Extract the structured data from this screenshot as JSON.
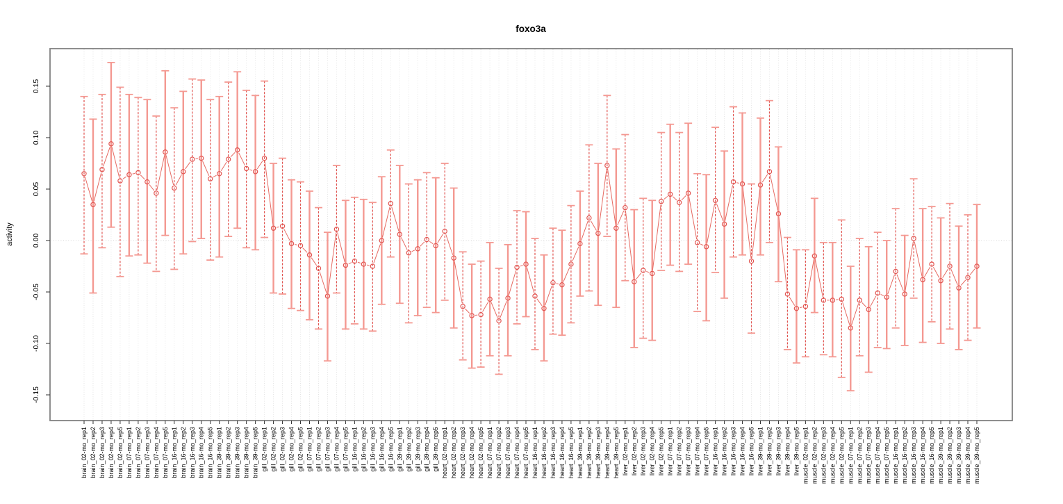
{
  "title": "foxo3a",
  "y_axis": {
    "label": "activity",
    "tick_labels": [
      "0.15",
      "0.10",
      "0.05",
      "0.00",
      "-0.05",
      "-0.10",
      "-0.15"
    ],
    "tick_values": [
      0.15,
      0.1,
      0.05,
      0.0,
      -0.05,
      -0.1,
      -0.15
    ]
  },
  "chart_data": {
    "type": "scatter",
    "title": "foxo3a",
    "xlabel": "",
    "ylabel": "activity",
    "ylim": [
      -0.157,
      0.18
    ],
    "grid": "vertical-dotted-per-category-plus-zero-line",
    "legend_position": "none",
    "marker": "open-circle",
    "error_bars": true,
    "categories": [
      "brain_02-mo_rep1",
      "brain_02-mo_rep2",
      "brain_02-mo_rep3",
      "brain_02-mo_rep4",
      "brain_02-mo_rep5",
      "brain_07-mo_rep1",
      "brain_07-mo_rep2",
      "brain_07-mo_rep3",
      "brain_07-mo_rep4",
      "brain_07-mo_rep5",
      "brain_16-mo_rep1",
      "brain_16-mo_rep2",
      "brain_16-mo_rep3",
      "brain_16-mo_rep4",
      "brain_16-mo_rep5",
      "brain_39-mo_rep1",
      "brain_39-mo_rep2",
      "brain_39-mo_rep3",
      "brain_39-mo_rep4",
      "brain_39-mo_rep5",
      "gill_02-mo_rep1",
      "gill_02-mo_rep2",
      "gill_02-mo_rep3",
      "gill_02-mo_rep4",
      "gill_02-mo_rep5",
      "gill_07-mo_rep1",
      "gill_07-mo_rep2",
      "gill_07-mo_rep3",
      "gill_07-mo_rep4",
      "gill_07-mo_rep5",
      "gill_16-mo_rep1",
      "gill_16-mo_rep2",
      "gill_16-mo_rep3",
      "gill_16-mo_rep4",
      "gill_16-mo_rep5",
      "gill_39-mo_rep1",
      "gill_39-mo_rep2",
      "gill_39-mo_rep3",
      "gill_39-mo_rep4",
      "gill_39-mo_rep5",
      "heart_02-mo_rep1",
      "heart_02-mo_rep2",
      "heart_02-mo_rep3",
      "heart_02-mo_rep4",
      "heart_02-mo_rep5",
      "heart_07-mo_rep1",
      "heart_07-mo_rep2",
      "heart_07-mo_rep3",
      "heart_07-mo_rep4",
      "heart_07-mo_rep5",
      "heart_16-mo_rep1",
      "heart_16-mo_rep2",
      "heart_16-mo_rep3",
      "heart_16-mo_rep4",
      "heart_16-mo_rep5",
      "heart_39-mo_rep1",
      "heart_39-mo_rep2",
      "heart_39-mo_rep3",
      "heart_39-mo_rep4",
      "heart_39-mo_rep5",
      "liver_02-mo_rep1",
      "liver_02-mo_rep2",
      "liver_02-mo_rep3",
      "liver_02-mo_rep4",
      "liver_02-mo_rep5",
      "liver_07-mo_rep1",
      "liver_07-mo_rep2",
      "liver_07-mo_rep3",
      "liver_07-mo_rep4",
      "liver_07-mo_rep5",
      "liver_16-mo_rep1",
      "liver_16-mo_rep2",
      "liver_16-mo_rep3",
      "liver_16-mo_rep4",
      "liver_16-mo_rep5",
      "liver_39-mo_rep1",
      "liver_39-mo_rep2",
      "liver_39-mo_rep3",
      "liver_39-mo_rep4",
      "liver_39-mo_rep5",
      "muscle_02-mo_rep1",
      "muscle_02-mo_rep2",
      "muscle_02-mo_rep3",
      "muscle_02-mo_rep4",
      "muscle_02-mo_rep5",
      "muscle_07-mo_rep1",
      "muscle_07-mo_rep2",
      "muscle_07-mo_rep3",
      "muscle_07-mo_rep4",
      "muscle_07-mo_rep5",
      "muscle_16-mo_rep1",
      "muscle_16-mo_rep2",
      "muscle_16-mo_rep3",
      "muscle_16-mo_rep4",
      "muscle_16-mo_rep5",
      "muscle_39-mo_rep1",
      "muscle_39-mo_rep2",
      "muscle_39-mo_rep3",
      "muscle_39-mo_rep4",
      "muscle_39-mo_rep5"
    ],
    "series": [
      {
        "name": "activity",
        "values": [
          0.065,
          0.035,
          0.069,
          0.094,
          0.058,
          0.064,
          0.066,
          0.057,
          0.046,
          0.086,
          0.051,
          0.067,
          0.079,
          0.08,
          0.06,
          0.065,
          0.079,
          0.088,
          0.07,
          0.067,
          0.08,
          0.012,
          0.014,
          -0.003,
          -0.005,
          -0.014,
          -0.027,
          -0.054,
          0.011,
          -0.024,
          -0.02,
          -0.023,
          -0.025,
          0.0,
          0.036,
          0.006,
          -0.012,
          -0.008,
          0.001,
          -0.005,
          0.009,
          -0.017,
          -0.064,
          -0.073,
          -0.072,
          -0.057,
          -0.078,
          -0.056,
          -0.026,
          -0.023,
          -0.054,
          -0.066,
          -0.041,
          -0.043,
          -0.023,
          -0.003,
          0.022,
          0.007,
          0.073,
          0.012,
          0.032,
          -0.04,
          -0.029,
          -0.032,
          0.038,
          0.045,
          0.037,
          0.046,
          -0.002,
          -0.006,
          0.039,
          0.016,
          0.057,
          0.055,
          -0.02,
          0.054,
          0.067,
          0.026,
          -0.052,
          -0.066,
          -0.064,
          -0.015,
          -0.058,
          -0.058,
          -0.057,
          -0.085,
          -0.058,
          -0.067,
          -0.051,
          -0.055,
          -0.03,
          -0.052,
          0.002,
          -0.038,
          -0.023,
          -0.039,
          -0.025,
          -0.046,
          -0.036,
          -0.025
        ],
        "error_high": [
          0.14,
          0.118,
          0.142,
          0.173,
          0.149,
          0.142,
          0.139,
          0.137,
          0.121,
          0.165,
          0.129,
          0.145,
          0.157,
          0.156,
          0.137,
          0.14,
          0.154,
          0.164,
          0.146,
          0.141,
          0.155,
          0.075,
          0.08,
          0.059,
          0.057,
          0.048,
          0.032,
          0.008,
          0.073,
          0.039,
          0.042,
          0.04,
          0.037,
          0.062,
          0.088,
          0.073,
          0.055,
          0.059,
          0.066,
          0.061,
          0.075,
          0.051,
          -0.011,
          -0.023,
          -0.02,
          -0.002,
          -0.027,
          -0.004,
          0.029,
          0.028,
          0.002,
          -0.014,
          0.012,
          0.01,
          0.034,
          0.048,
          0.093,
          0.075,
          0.141,
          0.089,
          0.103,
          0.03,
          0.041,
          0.039,
          0.105,
          0.113,
          0.105,
          0.114,
          0.065,
          0.064,
          0.11,
          0.087,
          0.13,
          0.124,
          0.055,
          0.119,
          0.136,
          0.091,
          0.003,
          -0.009,
          -0.009,
          0.041,
          -0.002,
          -0.002,
          0.02,
          -0.025,
          0.002,
          -0.006,
          0.008,
          0.0,
          0.031,
          0.005,
          0.06,
          0.031,
          0.033,
          0.022,
          0.036,
          0.014,
          0.025,
          0.035
        ],
        "error_low": [
          -0.013,
          -0.051,
          -0.007,
          0.013,
          -0.035,
          -0.015,
          -0.014,
          -0.022,
          -0.03,
          0.005,
          -0.028,
          -0.013,
          -0.001,
          0.002,
          -0.019,
          -0.016,
          0.004,
          0.012,
          -0.007,
          -0.009,
          0.003,
          -0.051,
          -0.052,
          -0.066,
          -0.068,
          -0.077,
          -0.086,
          -0.117,
          -0.051,
          -0.086,
          -0.081,
          -0.086,
          -0.088,
          -0.062,
          -0.016,
          -0.061,
          -0.08,
          -0.073,
          -0.065,
          -0.07,
          -0.058,
          -0.085,
          -0.116,
          -0.124,
          -0.123,
          -0.112,
          -0.13,
          -0.112,
          -0.081,
          -0.074,
          -0.106,
          -0.117,
          -0.091,
          -0.092,
          -0.08,
          -0.054,
          -0.049,
          -0.063,
          0.004,
          -0.065,
          -0.039,
          -0.104,
          -0.095,
          -0.097,
          -0.029,
          -0.024,
          -0.03,
          -0.023,
          -0.069,
          -0.078,
          -0.031,
          -0.056,
          -0.016,
          -0.014,
          -0.09,
          -0.014,
          -0.002,
          -0.04,
          -0.106,
          -0.119,
          -0.113,
          -0.07,
          -0.111,
          -0.113,
          -0.133,
          -0.146,
          -0.112,
          -0.128,
          -0.104,
          -0.105,
          -0.085,
          -0.102,
          -0.056,
          -0.099,
          -0.079,
          -0.1,
          -0.086,
          -0.106,
          -0.097,
          -0.085
        ]
      }
    ],
    "colors": {
      "point_stroke": "#e25551",
      "line": "#e66a62",
      "bar_solid": "#f49992",
      "bar_dashed": "#e25551",
      "grid": "#e2e2e2",
      "zero_line": "#d4d4d4",
      "box": "#828282",
      "tick": "#333333"
    }
  }
}
